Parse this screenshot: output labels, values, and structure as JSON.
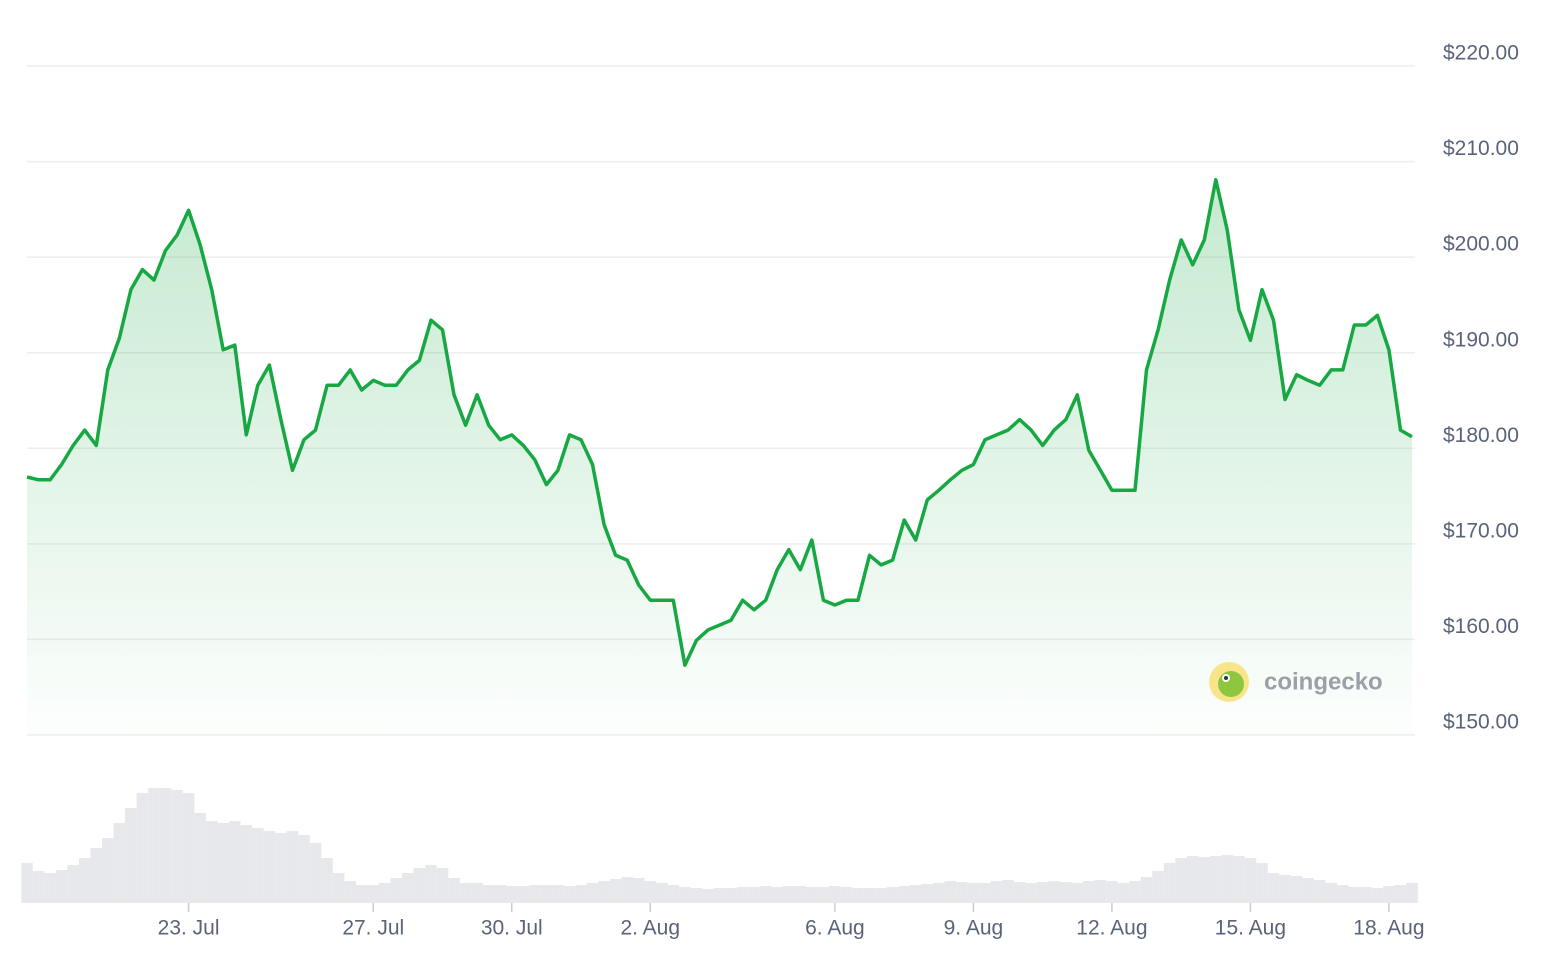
{
  "chart_data": {
    "type": "line",
    "categories": [
      null,
      null,
      null,
      null,
      null,
      null,
      null,
      null,
      null,
      null,
      null,
      null,
      null,
      null,
      "23. Jul",
      null,
      null,
      null,
      null,
      null,
      null,
      null,
      null,
      null,
      null,
      null,
      null,
      null,
      null,
      null,
      "27. Jul",
      null,
      null,
      null,
      null,
      null,
      null,
      null,
      null,
      null,
      null,
      null,
      "30. Jul",
      null,
      null,
      null,
      null,
      null,
      null,
      null,
      null,
      null,
      null,
      null,
      "2. Aug",
      null,
      null,
      null,
      null,
      null,
      null,
      null,
      null,
      null,
      null,
      null,
      null,
      null,
      null,
      null,
      "6. Aug",
      null,
      null,
      null,
      null,
      null,
      null,
      null,
      null,
      null,
      null,
      null,
      "9. Aug",
      null,
      null,
      null,
      null,
      null,
      null,
      null,
      null,
      null,
      null,
      null,
      "12. Aug",
      null,
      null,
      null,
      null,
      null,
      null,
      null,
      null,
      null,
      null,
      null,
      "15. Aug",
      null,
      null,
      null,
      null,
      null,
      null,
      null,
      null,
      null,
      null,
      null,
      "18. Aug",
      null,
      null
    ],
    "values": [
      177.0,
      176.7,
      176.7,
      178.3,
      180.3,
      181.9,
      180.3,
      188.2,
      191.5,
      196.6,
      198.7,
      197.6,
      200.7,
      202.3,
      204.9,
      201.3,
      196.6,
      190.3,
      190.8,
      181.4,
      186.6,
      188.7,
      183.0,
      177.7,
      180.9,
      181.9,
      186.6,
      186.6,
      188.2,
      186.1,
      187.1,
      186.6,
      186.6,
      188.2,
      189.2,
      193.4,
      192.4,
      185.6,
      182.4,
      185.6,
      182.4,
      180.9,
      181.4,
      180.3,
      178.8,
      176.2,
      177.7,
      181.4,
      180.9,
      178.3,
      172.0,
      168.8,
      168.3,
      165.7,
      164.1,
      164.1,
      164.1,
      157.3,
      159.9,
      161.0,
      161.5,
      162.0,
      164.1,
      163.1,
      164.1,
      167.3,
      169.4,
      167.3,
      170.4,
      164.1,
      163.6,
      164.1,
      164.1,
      168.8,
      167.8,
      168.3,
      172.5,
      170.4,
      174.6,
      175.6,
      176.7,
      177.7,
      178.3,
      180.9,
      181.4,
      181.9,
      183.0,
      181.9,
      180.3,
      181.9,
      183.0,
      185.6,
      179.8,
      177.7,
      175.6,
      175.6,
      175.6,
      188.2,
      192.4,
      197.6,
      201.8,
      199.2,
      201.8,
      208.1,
      202.8,
      194.5,
      191.3,
      196.6,
      193.4,
      185.1,
      187.7,
      187.1,
      186.6,
      188.2,
      188.2,
      192.9,
      192.9,
      193.9,
      190.3,
      181.9,
      181.2
    ],
    "color": "#18a843",
    "volume": [
      40,
      32,
      30,
      33,
      38,
      45,
      55,
      65,
      80,
      95,
      110,
      115,
      115,
      113,
      110,
      90,
      82,
      80,
      82,
      78,
      75,
      72,
      70,
      72,
      68,
      60,
      45,
      30,
      22,
      18,
      18,
      20,
      25,
      30,
      35,
      38,
      35,
      25,
      20,
      20,
      18,
      18,
      17,
      17,
      18,
      18,
      18,
      17,
      18,
      20,
      22,
      24,
      26,
      25,
      22,
      20,
      18,
      16,
      15,
      14,
      15,
      15,
      16,
      16,
      17,
      16,
      17,
      17,
      16,
      16,
      17,
      16,
      15,
      15,
      15,
      16,
      17,
      18,
      19,
      20,
      22,
      21,
      20,
      20,
      22,
      23,
      21,
      20,
      21,
      22,
      21,
      20,
      22,
      23,
      22,
      20,
      22,
      26,
      32,
      40,
      45,
      47,
      46,
      47,
      48,
      47,
      45,
      40,
      30,
      28,
      27,
      25,
      23,
      20,
      18,
      16,
      16,
      15,
      17,
      18,
      20
    ],
    "volume_color": "#e6e8eb",
    "ylim": [
      150,
      220
    ],
    "yticks": [
      {
        "value": 150,
        "label": "$150.00"
      },
      {
        "value": 160,
        "label": "$160.00"
      },
      {
        "value": 170,
        "label": "$170.00"
      },
      {
        "value": 180,
        "label": "$180.00"
      },
      {
        "value": 190,
        "label": "$190.00"
      },
      {
        "value": 200,
        "label": "$200.00"
      },
      {
        "value": 210,
        "label": "$210.00"
      },
      {
        "value": 220,
        "label": "$220.00"
      }
    ],
    "grid": true,
    "watermark": "coingecko"
  }
}
